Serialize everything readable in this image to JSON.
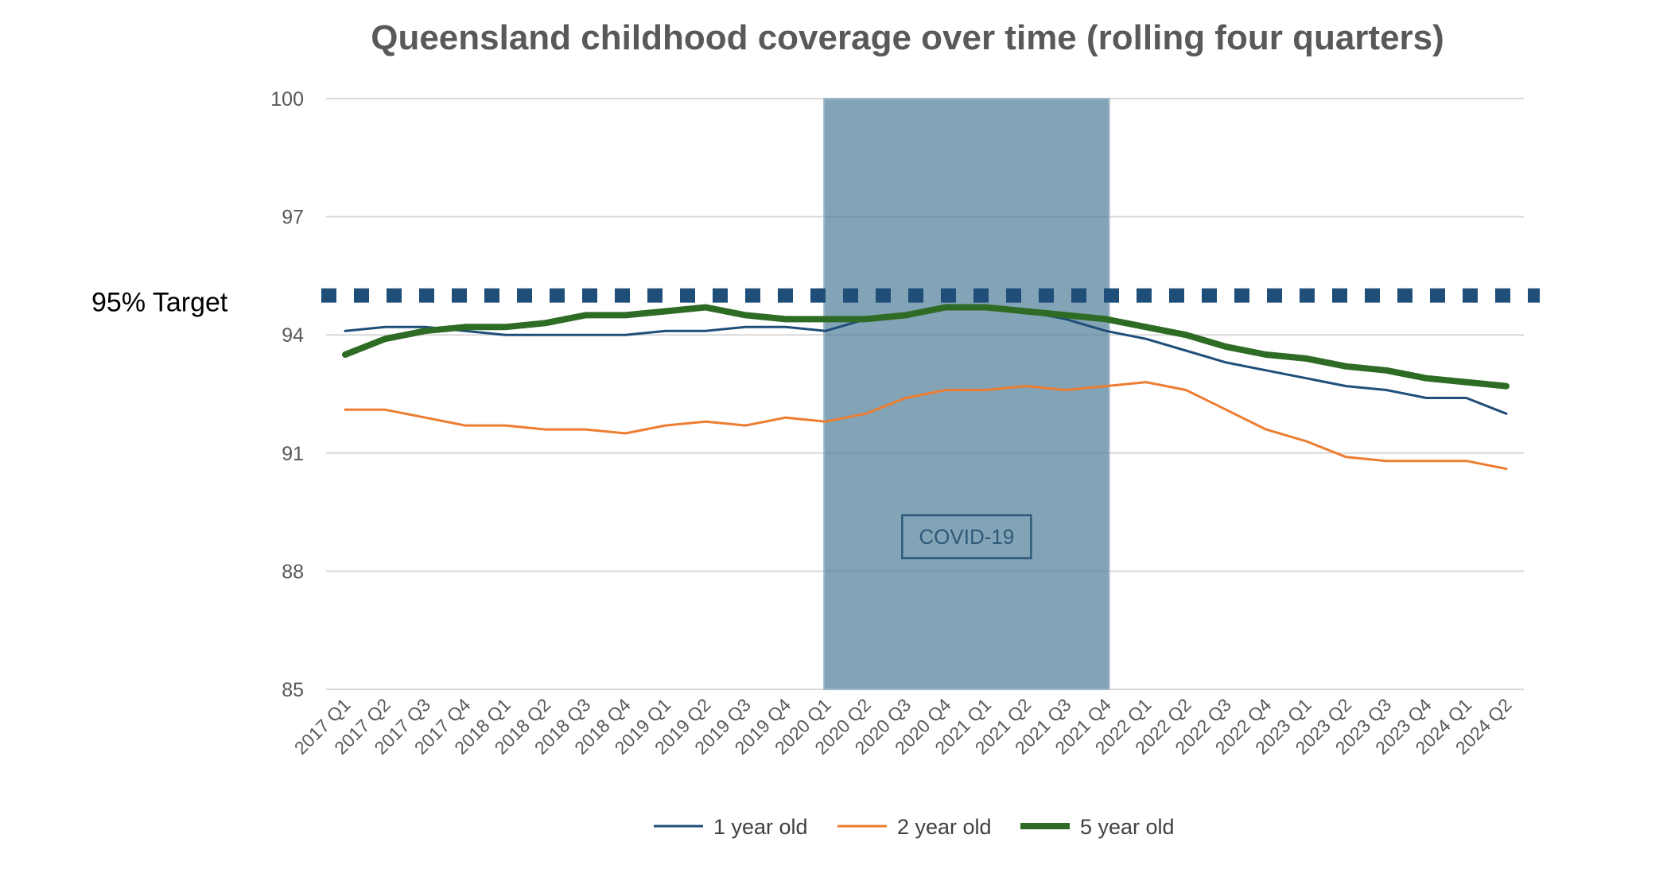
{
  "chart_data": {
    "type": "line",
    "title": "Queensland childhood coverage over time (rolling four quarters)",
    "xlabel": "",
    "ylabel": "",
    "ylim": [
      85,
      100
    ],
    "yticks": [
      85,
      88,
      91,
      94,
      97,
      100
    ],
    "grid": true,
    "legend": "bottom",
    "categories": [
      "2017 Q1",
      "2017 Q2",
      "2017 Q3",
      "2017 Q4",
      "2018 Q1",
      "2018 Q2",
      "2018 Q3",
      "2018 Q4",
      "2019 Q1",
      "2019 Q2",
      "2019 Q3",
      "2019 Q4",
      "2020 Q1",
      "2020 Q2",
      "2020 Q3",
      "2020 Q4",
      "2021 Q1",
      "2021 Q2",
      "2021 Q3",
      "2021 Q4",
      "2022 Q1",
      "2022 Q2",
      "2022 Q3",
      "2022 Q4",
      "2023 Q1",
      "2023 Q2",
      "2023 Q3",
      "2023 Q4",
      "2024 Q1",
      "2024 Q2"
    ],
    "series": [
      {
        "name": "1 year old",
        "color": "#1f4e79",
        "values": [
          94.1,
          94.2,
          94.2,
          94.1,
          94.0,
          94.0,
          94.0,
          94.0,
          94.1,
          94.1,
          94.2,
          94.2,
          94.1,
          94.4,
          94.5,
          94.7,
          94.7,
          94.6,
          94.4,
          94.1,
          93.9,
          93.6,
          93.3,
          93.1,
          92.9,
          92.7,
          92.6,
          92.4,
          92.4,
          92.0
        ]
      },
      {
        "name": "2 year old",
        "color": "#ed7d31",
        "values": [
          92.1,
          92.1,
          91.9,
          91.7,
          91.7,
          91.6,
          91.6,
          91.5,
          91.7,
          91.8,
          91.7,
          91.9,
          91.8,
          92.0,
          92.4,
          92.6,
          92.6,
          92.7,
          92.6,
          92.7,
          92.8,
          92.6,
          92.1,
          91.6,
          91.3,
          90.9,
          90.8,
          90.8,
          90.8,
          90.6
        ]
      },
      {
        "name": "5 year old",
        "color": "#2e6b24",
        "values": [
          93.5,
          93.9,
          94.1,
          94.2,
          94.2,
          94.3,
          94.5,
          94.5,
          94.6,
          94.7,
          94.5,
          94.4,
          94.4,
          94.4,
          94.5,
          94.7,
          94.7,
          94.6,
          94.5,
          94.4,
          94.2,
          94.0,
          93.7,
          93.5,
          93.4,
          93.2,
          93.1,
          92.9,
          92.8,
          92.7
        ]
      }
    ],
    "target": {
      "value": 95,
      "label": "95% Target",
      "color": "#1f4e79"
    },
    "shaded_region": {
      "from": "2020 Q1",
      "to": "2021 Q4",
      "label": "COVID-19",
      "color": "#4f7c99"
    }
  }
}
